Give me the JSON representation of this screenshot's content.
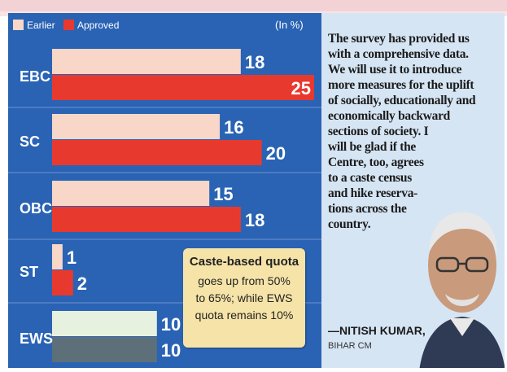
{
  "colors": {
    "panel_bg": "#2a63b4",
    "earlier": "#f8d6c8",
    "approved": "#e8392f",
    "ews_earlier": "#e6f1df",
    "ews_approved": "#5d707a",
    "callout_bg": "#f6e3a8",
    "quote_bg": "#d6e5f4"
  },
  "chart_data": {
    "type": "bar",
    "orientation": "horizontal",
    "unit_note": "(In %)",
    "categories": [
      "EBC",
      "SC",
      "OBC",
      "ST",
      "EWS"
    ],
    "series": [
      {
        "name": "Earlier",
        "values": [
          18,
          16,
          15,
          1,
          10
        ]
      },
      {
        "name": "Approved",
        "values": [
          25,
          20,
          18,
          2,
          10
        ]
      }
    ],
    "legend_position": "top-left",
    "grid": false
  },
  "callout": {
    "title": "Caste-based quota",
    "lines": [
      "goes up from 50%",
      "to 65%; while EWS",
      "quota remains 10%"
    ]
  },
  "quote": {
    "lines": [
      "The survey has provided us",
      "with a comprehensive data.",
      "We will use it to introduce",
      "more measures for the uplift",
      "of socially, educationally and",
      "economically backward",
      "sections of society. I",
      "will be glad if the",
      "Centre, too, agrees",
      "to a caste census",
      "and hike reserva-",
      "tions across the",
      "country."
    ],
    "author": "—NITISH KUMAR,",
    "role": "BIHAR CM"
  }
}
